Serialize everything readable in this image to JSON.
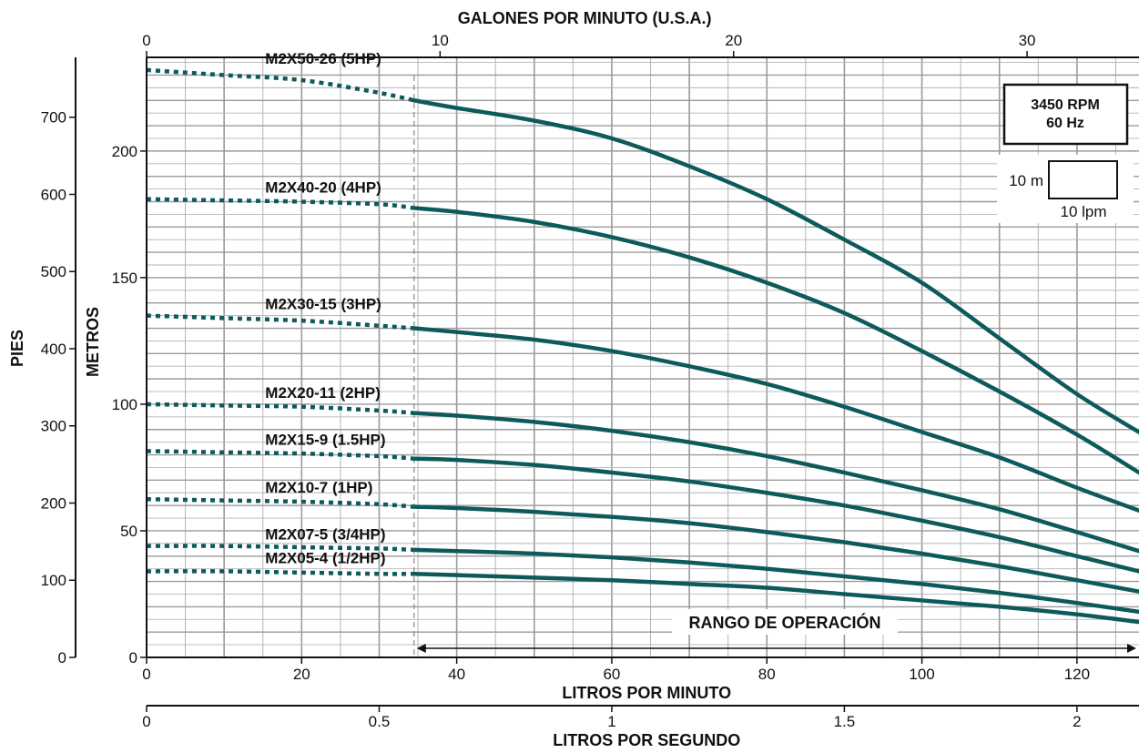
{
  "chart_data": {
    "type": "line",
    "title": "",
    "x_axes": {
      "lpm": {
        "label": "LITROS POR MINUTO",
        "range": [
          0,
          128
        ],
        "ticks": [
          0,
          20,
          40,
          60,
          80,
          100,
          120
        ]
      },
      "gpm": {
        "label": "GALONES POR MINUTO (U.S.A.)",
        "ticks": [
          0,
          10,
          20,
          30
        ]
      },
      "lps": {
        "label": "LITROS POR SEGUNDO",
        "ticks": [
          0,
          0.5,
          1,
          1.5,
          2
        ]
      }
    },
    "y_axes": {
      "meters": {
        "label": "METROS",
        "range": [
          0,
          237
        ],
        "ticks": [
          0,
          50,
          100,
          150,
          200
        ]
      },
      "feet": {
        "label": "PIES",
        "ticks": [
          0,
          100,
          200,
          300,
          400,
          500,
          600,
          700
        ]
      }
    },
    "operating_range": {
      "label": "RANGO DE OPERACIÓN",
      "from_lpm": 34.5,
      "to_lpm": 128
    },
    "legend_box": {
      "line1": "3450 RPM",
      "line2": "60 Hz"
    },
    "scale_box": {
      "height_label": "10 m",
      "width_label": "10 lpm"
    },
    "grid": true,
    "series": [
      {
        "name": "M2X50-26 (5HP)",
        "x": [
          0,
          10,
          20,
          30,
          34.5,
          40,
          50,
          60,
          70,
          80,
          90,
          100,
          110,
          120,
          128
        ],
        "y": [
          232,
          230,
          228,
          223,
          220,
          217,
          212,
          205,
          194,
          181,
          165,
          148,
          126,
          104,
          89
        ]
      },
      {
        "name": "M2X40-20 (4HP)",
        "x": [
          0,
          10,
          20,
          30,
          34.5,
          40,
          50,
          60,
          70,
          80,
          90,
          100,
          110,
          120,
          128
        ],
        "y": [
          181,
          180.5,
          180,
          179,
          177.5,
          176,
          172,
          166,
          158,
          148,
          136,
          121,
          105,
          88,
          73
        ]
      },
      {
        "name": "M2X30-15 (3HP)",
        "x": [
          0,
          10,
          20,
          30,
          34.5,
          40,
          50,
          60,
          70,
          80,
          90,
          100,
          110,
          120,
          128
        ],
        "y": [
          135,
          134,
          133,
          131,
          130,
          128.5,
          125.5,
          121,
          115,
          108,
          99,
          89,
          79,
          67,
          58
        ]
      },
      {
        "name": "M2X20-11 (2HP)",
        "x": [
          0,
          10,
          20,
          30,
          34.5,
          40,
          50,
          60,
          70,
          80,
          90,
          100,
          110,
          120,
          128
        ],
        "y": [
          100,
          99.5,
          99,
          97.5,
          96.5,
          95.5,
          93,
          89.5,
          85,
          79.5,
          73,
          66,
          58.5,
          49.5,
          42
        ]
      },
      {
        "name": "M2X15-9 (1.5HP)",
        "x": [
          0,
          10,
          20,
          30,
          34.5,
          40,
          50,
          60,
          70,
          80,
          90,
          100,
          110,
          120,
          128
        ],
        "y": [
          81.5,
          81,
          80.5,
          79.5,
          78.5,
          78,
          76,
          73,
          69.5,
          65,
          60,
          54,
          47.5,
          40,
          34
        ]
      },
      {
        "name": "M2X10-7 (1HP)",
        "x": [
          0,
          10,
          20,
          30,
          34.5,
          40,
          50,
          60,
          70,
          80,
          90,
          100,
          110,
          120,
          128
        ],
        "y": [
          62.5,
          62,
          61.5,
          60.5,
          59.5,
          59,
          57.5,
          55.5,
          53,
          49.5,
          45.5,
          41,
          36,
          30.5,
          26
        ]
      },
      {
        "name": "M2X07-5 (3/4HP)",
        "x": [
          0,
          10,
          20,
          30,
          34.5,
          40,
          50,
          60,
          70,
          80,
          90,
          100,
          110,
          120,
          128
        ],
        "y": [
          44,
          44,
          43.5,
          43,
          42.5,
          42,
          41,
          39.5,
          37.5,
          35,
          32,
          29,
          25.5,
          21.5,
          18
        ]
      },
      {
        "name": "M2X05-4 (1/2HP)",
        "x": [
          0,
          10,
          20,
          30,
          34.5,
          40,
          50,
          60,
          70,
          80,
          90,
          100,
          110,
          120,
          128
        ],
        "y": [
          34,
          34,
          33.5,
          33,
          33,
          32.5,
          31.5,
          30.5,
          29,
          27.5,
          25,
          22.5,
          20,
          17,
          14
        ]
      }
    ],
    "colors": {
      "curve": "#0e5a5a",
      "grid": "#b5b5b5",
      "grid_major": "#9a9a9a",
      "axis": "#111111"
    }
  }
}
